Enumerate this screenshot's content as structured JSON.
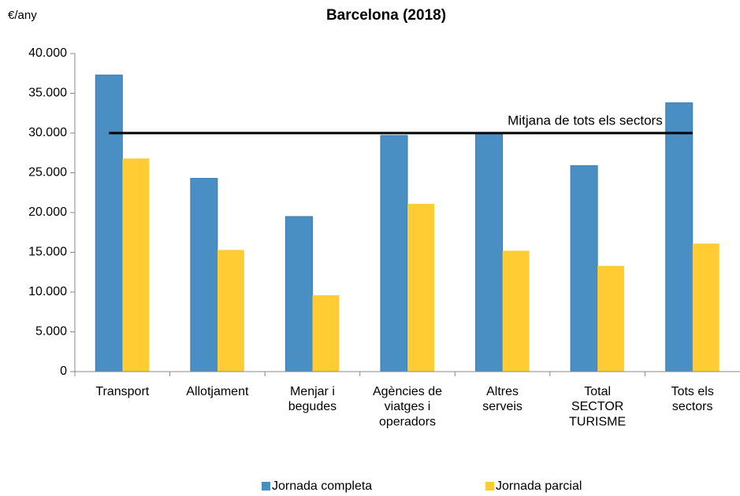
{
  "chart_data": {
    "type": "bar",
    "title": "Barcelona (2018)",
    "y_label": "€/any",
    "categories": [
      "Transport",
      "Allotjament",
      "Menjar i\nbegudes",
      "Agències de\nviatges i\noperadors",
      "Altres\nserveis",
      "Total\nSECTOR\nTURISME",
      "Tots els\nsectors"
    ],
    "series": [
      {
        "name": "Jornada completa",
        "color": "#4a8fc4",
        "values": [
          37300,
          24300,
          19500,
          29700,
          30000,
          25900,
          33800
        ]
      },
      {
        "name": "Jornada parcial",
        "color": "#ffcc33",
        "values": [
          26800,
          15300,
          9600,
          21100,
          15200,
          13300,
          16100
        ]
      }
    ],
    "reference_line": {
      "value": 30000,
      "label": "Mitjana de tots els sectors"
    },
    "ylim": [
      0,
      40000
    ],
    "yticks": [
      0,
      {
        "value": 5000,
        "label": "5.000"
      },
      {
        "value": 10000,
        "label": "10.000"
      },
      {
        "value": 15000,
        "label": "15.000"
      },
      {
        "value": 20000,
        "label": "20.000"
      },
      {
        "value": 25000,
        "label": "25.000"
      },
      {
        "value": 30000,
        "label": "30.000"
      },
      {
        "value": 35000,
        "label": "35.000"
      },
      {
        "value": 40000,
        "label": "40.000"
      }
    ],
    "grid": false,
    "legend": "bottom"
  }
}
